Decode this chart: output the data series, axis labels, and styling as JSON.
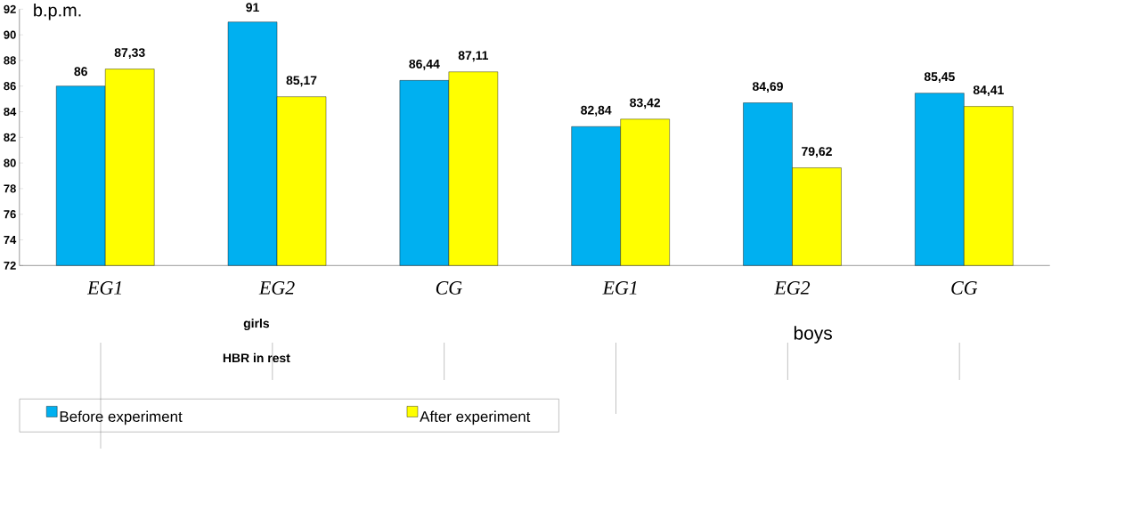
{
  "chart_data": {
    "type": "bar",
    "ylabel": "b.p.m.",
    "xlabel": "HBR in rest",
    "categories": [
      "EG1",
      "EG2",
      "CG",
      "EG1",
      "EG2",
      "CG"
    ],
    "series": [
      {
        "name": "Before experiment",
        "color": "#00b0f0",
        "values": [
          86,
          91,
          86.44,
          82.84,
          84.69,
          85.45
        ],
        "value_labels": [
          "86",
          "91",
          "86,44",
          "82,84",
          "84,69",
          "85,45"
        ]
      },
      {
        "name": "After experiment",
        "color": "#ffff00",
        "values": [
          87.33,
          85.17,
          87.11,
          83.42,
          79.62,
          84.41
        ],
        "value_labels": [
          "87,33",
          "85,17",
          "87,11",
          "83,42",
          "79,62",
          "84,41"
        ]
      }
    ],
    "annotations": [
      "girls",
      "boys"
    ],
    "ylim": [
      72,
      92
    ],
    "yticks": [
      72,
      74,
      76,
      78,
      80,
      82,
      84,
      86,
      88,
      90,
      92
    ],
    "grid": false,
    "legend": "bottom"
  }
}
